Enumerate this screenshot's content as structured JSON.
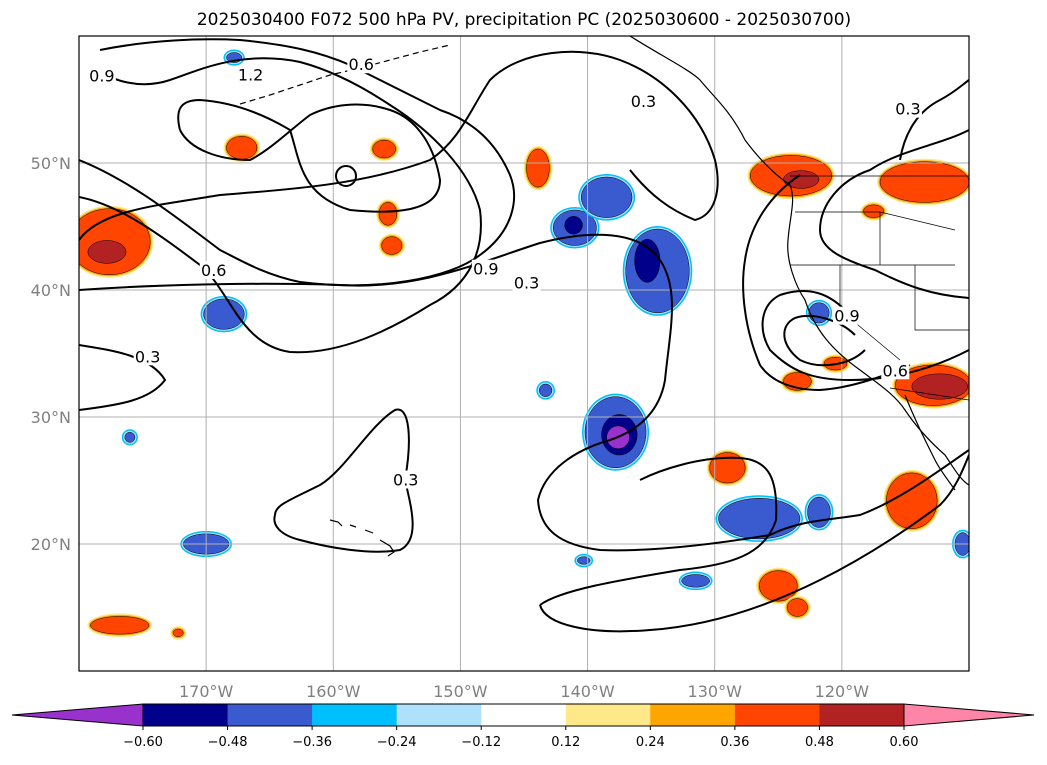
{
  "title": "2025030400 F072 500 hPa PV, precipitation PC (2025030600 - 2025030700)",
  "map": {
    "lon_min": -180,
    "lon_max": -110,
    "lat_min": 10,
    "lat_max": 60,
    "lon_ticks": [
      {
        "lon": -170,
        "label": "170°W"
      },
      {
        "lon": -160,
        "label": "160°W"
      },
      {
        "lon": -150,
        "label": "150°W"
      },
      {
        "lon": -140,
        "label": "140°W"
      },
      {
        "lon": -130,
        "label": "130°W"
      },
      {
        "lon": -120,
        "label": "120°W"
      }
    ],
    "lat_ticks": [
      {
        "lat": 20,
        "label": "20°N"
      },
      {
        "lat": 30,
        "label": "30°N"
      },
      {
        "lat": 40,
        "label": "40°N"
      },
      {
        "lat": 50,
        "label": "50°N"
      }
    ],
    "gridlines": true,
    "contour_line_color": "#000000",
    "coastline_color": "#000000"
  },
  "contour_labels": [
    {
      "text": "0.9",
      "lon": -178.2,
      "lat": 56.8
    },
    {
      "text": "1.2",
      "lon": -166.5,
      "lat": 56.9
    },
    {
      "text": "0.6",
      "lon": -157.8,
      "lat": 57.7
    },
    {
      "text": "0.3",
      "lon": -135.6,
      "lat": 54.8
    },
    {
      "text": "0.3",
      "lon": -114.8,
      "lat": 54.2
    },
    {
      "text": "0.6",
      "lon": -169.4,
      "lat": 41.5
    },
    {
      "text": "0.9",
      "lon": -148.0,
      "lat": 41.6
    },
    {
      "text": "0.3",
      "lon": -144.8,
      "lat": 40.5
    },
    {
      "text": "0.3",
      "lon": -174.6,
      "lat": 34.7
    },
    {
      "text": "0.3",
      "lon": -154.3,
      "lat": 25.0
    },
    {
      "text": "0.9",
      "lon": -119.6,
      "lat": 37.9
    },
    {
      "text": "0.6",
      "lon": -115.8,
      "lat": 33.6
    }
  ],
  "colorbar": {
    "levels": [
      "−0.60",
      "−0.48",
      "−0.36",
      "−0.24",
      "−0.12",
      "0.12",
      "0.24",
      "0.36",
      "0.48",
      "0.60"
    ],
    "colors": [
      "#9932cc",
      "#00008b",
      "#3a5bd0",
      "#00bfff",
      "#ade2fa",
      "#ffffff",
      "#ffe88a",
      "#ffa500",
      "#ff4500",
      "#b22222",
      "#ff85a8"
    ],
    "extend": "both"
  },
  "precip_anomalies": [
    {
      "lon": -177.6,
      "lat": 43.8,
      "rx": 3.2,
      "ry": 2.6,
      "level": 3
    },
    {
      "lon": -177.8,
      "lat": 43.0,
      "rx": 1.5,
      "ry": 0.9,
      "level": 4
    },
    {
      "lon": -167.2,
      "lat": 51.2,
      "rx": 1.2,
      "ry": 0.9,
      "level": 3
    },
    {
      "lon": -156.0,
      "lat": 51.1,
      "rx": 0.9,
      "ry": 0.7,
      "level": 3
    },
    {
      "lon": -155.7,
      "lat": 46.0,
      "rx": 0.7,
      "ry": 0.9,
      "level": 3
    },
    {
      "lon": -155.4,
      "lat": 43.5,
      "rx": 0.8,
      "ry": 0.7,
      "level": 3
    },
    {
      "lon": -143.9,
      "lat": 49.6,
      "rx": 0.9,
      "ry": 1.5,
      "level": 3
    },
    {
      "lon": -124.0,
      "lat": 49.0,
      "rx": 3.2,
      "ry": 1.6,
      "level": 3
    },
    {
      "lon": -123.2,
      "lat": 48.7,
      "rx": 1.4,
      "ry": 0.7,
      "level": 4
    },
    {
      "lon": -113.5,
      "lat": 48.5,
      "rx": 3.5,
      "ry": 1.6,
      "level": 3
    },
    {
      "lon": -117.5,
      "lat": 46.2,
      "rx": 0.8,
      "ry": 0.5,
      "level": 3
    },
    {
      "lon": -120.5,
      "lat": 34.2,
      "rx": 0.9,
      "ry": 0.5,
      "level": 3
    },
    {
      "lon": -123.5,
      "lat": 32.8,
      "rx": 1.1,
      "ry": 0.7,
      "level": 3
    },
    {
      "lon": -112.8,
      "lat": 32.5,
      "rx": 3.0,
      "ry": 1.6,
      "level": 3
    },
    {
      "lon": -112.3,
      "lat": 32.4,
      "rx": 2.2,
      "ry": 1.0,
      "level": 4
    },
    {
      "lon": -114.5,
      "lat": 23.4,
      "rx": 2.0,
      "ry": 2.2,
      "level": 3
    },
    {
      "lon": -129.0,
      "lat": 26.0,
      "rx": 1.4,
      "ry": 1.2,
      "level": 3
    },
    {
      "lon": -125.0,
      "lat": 16.7,
      "rx": 1.5,
      "ry": 1.2,
      "level": 3
    },
    {
      "lon": -123.5,
      "lat": 15.0,
      "rx": 0.8,
      "ry": 0.7,
      "level": 3
    },
    {
      "lon": -176.8,
      "lat": 13.6,
      "rx": 2.3,
      "ry": 0.7,
      "level": 3
    },
    {
      "lon": -172.2,
      "lat": 13.0,
      "rx": 0.4,
      "ry": 0.3,
      "level": 3
    },
    {
      "lon": -168.6,
      "lat": 38.1,
      "rx": 1.6,
      "ry": 1.2,
      "level": -3
    },
    {
      "lon": -141.0,
      "lat": 44.9,
      "rx": 1.7,
      "ry": 1.4,
      "level": -3
    },
    {
      "lon": -141.1,
      "lat": 45.1,
      "rx": 0.7,
      "ry": 0.7,
      "level": -4
    },
    {
      "lon": -138.5,
      "lat": 47.3,
      "rx": 2.0,
      "ry": 1.6,
      "level": -3
    },
    {
      "lon": -134.5,
      "lat": 41.5,
      "rx": 2.5,
      "ry": 3.3,
      "level": -3
    },
    {
      "lon": -135.3,
      "lat": 42.3,
      "rx": 1.0,
      "ry": 1.7,
      "level": -4
    },
    {
      "lon": -137.8,
      "lat": 28.8,
      "rx": 2.4,
      "ry": 2.8,
      "level": -3
    },
    {
      "lon": -137.5,
      "lat": 28.6,
      "rx": 1.4,
      "ry": 1.6,
      "level": -4
    },
    {
      "lon": -137.6,
      "lat": 28.4,
      "rx": 0.9,
      "ry": 0.9,
      "level": -5
    },
    {
      "lon": -126.5,
      "lat": 22.0,
      "rx": 3.2,
      "ry": 1.6,
      "level": -3
    },
    {
      "lon": -121.8,
      "lat": 22.5,
      "rx": 0.9,
      "ry": 1.2,
      "level": -3
    },
    {
      "lon": -121.8,
      "lat": 38.2,
      "rx": 0.8,
      "ry": 0.8,
      "level": -3
    },
    {
      "lon": -170.0,
      "lat": 20.0,
      "rx": 1.8,
      "ry": 0.8,
      "level": -3
    },
    {
      "lon": -143.3,
      "lat": 32.1,
      "rx": 0.5,
      "ry": 0.5,
      "level": -3
    },
    {
      "lon": -131.5,
      "lat": 17.1,
      "rx": 1.1,
      "ry": 0.5,
      "level": -3
    },
    {
      "lon": -140.3,
      "lat": 18.7,
      "rx": 0.5,
      "ry": 0.3,
      "level": -3
    },
    {
      "lon": -110.5,
      "lat": 20.0,
      "rx": 0.6,
      "ry": 0.9,
      "level": -3
    },
    {
      "lon": -176.0,
      "lat": 28.4,
      "rx": 0.4,
      "ry": 0.4,
      "level": -3
    },
    {
      "lon": -167.8,
      "lat": 58.3,
      "rx": 0.6,
      "ry": 0.4,
      "level": -3
    }
  ]
}
